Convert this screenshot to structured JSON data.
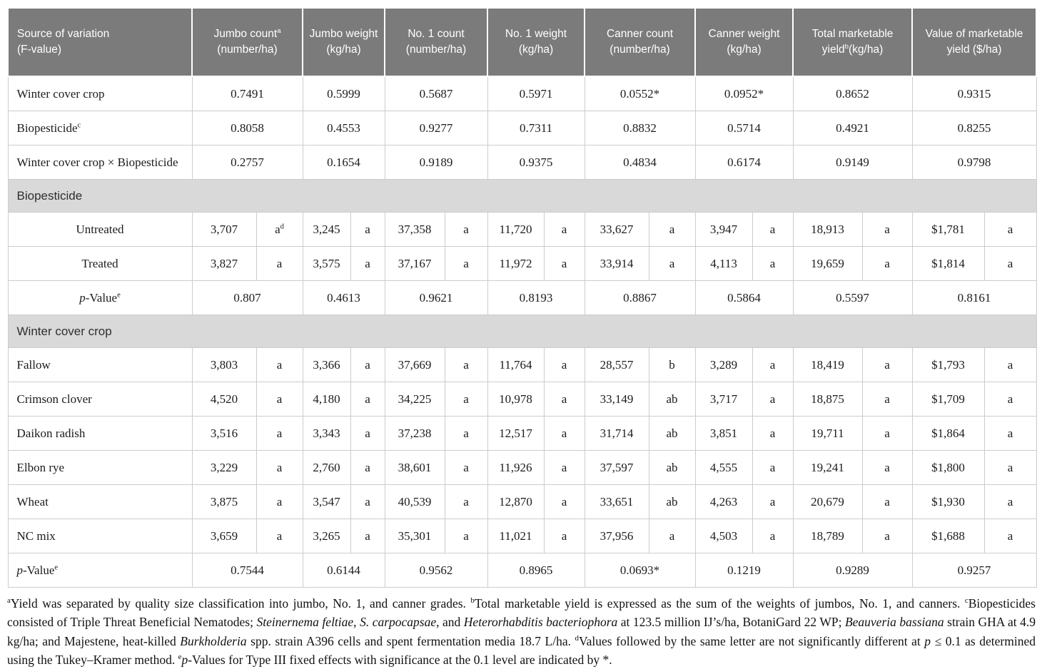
{
  "colors": {
    "header_bg": "#7b7b7b",
    "header_text": "#ffffff",
    "band_bg": "#d9d9d9",
    "border": "#cccccc",
    "body_text": "#1c1c1c"
  },
  "table": {
    "columns": [
      {
        "id": "source",
        "label": [
          {
            "t": "Source of variation"
          },
          {
            "s": "br"
          },
          {
            "t": "(F-value)"
          }
        ]
      },
      {
        "id": "jumbo-count",
        "label": [
          {
            "t": "Jumbo count"
          },
          {
            "t": "a",
            "s": "sup"
          },
          {
            "s": "br"
          },
          {
            "t": "(number/ha)"
          }
        ]
      },
      {
        "id": "jumbo-weight",
        "label": [
          {
            "t": "Jumbo weight (kg/ha)"
          }
        ]
      },
      {
        "id": "no1-count",
        "label": [
          {
            "t": "No. 1 count"
          },
          {
            "s": "br"
          },
          {
            "t": "(number/ha)"
          }
        ]
      },
      {
        "id": "no1-weight",
        "label": [
          {
            "t": "No. 1 weight"
          },
          {
            "s": "br"
          },
          {
            "t": "(kg/ha)"
          }
        ]
      },
      {
        "id": "canner-count",
        "label": [
          {
            "t": "Canner count"
          },
          {
            "s": "br"
          },
          {
            "t": "(number/ha)"
          }
        ]
      },
      {
        "id": "canner-weight",
        "label": [
          {
            "t": "Canner weight (kg/ha)"
          }
        ]
      },
      {
        "id": "total-marketable-yield",
        "label": [
          {
            "t": "Total marketable yield"
          },
          {
            "t": "b",
            "s": "sup"
          },
          {
            "t": "(kg/ha)"
          }
        ]
      },
      {
        "id": "value-marketable-yield",
        "label": [
          {
            "t": "Value of marketable yield ($/ha)"
          }
        ]
      }
    ],
    "f_rows": [
      {
        "label": [
          {
            "t": "Winter cover crop"
          }
        ],
        "values": [
          "0.7491",
          "0.5999",
          "0.5687",
          "0.5971",
          "0.0552*",
          "0.0952*",
          "0.8652",
          "0.9315"
        ]
      },
      {
        "label": [
          {
            "t": "Biopesticide"
          },
          {
            "t": "c",
            "s": "sup"
          }
        ],
        "values": [
          "0.8058",
          "0.4553",
          "0.9277",
          "0.7311",
          "0.8832",
          "0.5714",
          "0.4921",
          "0.8255"
        ]
      },
      {
        "label": [
          {
            "t": "Winter cover crop × Biopesticide"
          }
        ],
        "values": [
          "0.2757",
          "0.1654",
          "0.9189",
          "0.9375",
          "0.4834",
          "0.6174",
          "0.9149",
          "0.9798"
        ]
      }
    ],
    "sections": [
      {
        "title": "Biopesticide",
        "row_label_align": "center",
        "rows": [
          {
            "label": [
              {
                "t": "Untreated"
              }
            ],
            "cells": [
              {
                "v": "3,707",
                "l": [
                  {
                    "t": "a"
                  },
                  {
                    "t": "d",
                    "s": "sup"
                  }
                ]
              },
              {
                "v": "3,245",
                "l": [
                  {
                    "t": "a"
                  }
                ]
              },
              {
                "v": "37,358",
                "l": [
                  {
                    "t": "a"
                  }
                ]
              },
              {
                "v": "11,720",
                "l": [
                  {
                    "t": "a"
                  }
                ]
              },
              {
                "v": "33,627",
                "l": [
                  {
                    "t": "a"
                  }
                ]
              },
              {
                "v": "3,947",
                "l": [
                  {
                    "t": "a"
                  }
                ]
              },
              {
                "v": "18,913",
                "l": [
                  {
                    "t": "a"
                  }
                ]
              },
              {
                "v": "$1,781",
                "l": [
                  {
                    "t": "a"
                  }
                ]
              }
            ]
          },
          {
            "label": [
              {
                "t": "Treated"
              }
            ],
            "cells": [
              {
                "v": "3,827",
                "l": [
                  {
                    "t": "a"
                  }
                ]
              },
              {
                "v": "3,575",
                "l": [
                  {
                    "t": "a"
                  }
                ]
              },
              {
                "v": "37,167",
                "l": [
                  {
                    "t": "a"
                  }
                ]
              },
              {
                "v": "11,972",
                "l": [
                  {
                    "t": "a"
                  }
                ]
              },
              {
                "v": "33,914",
                "l": [
                  {
                    "t": "a"
                  }
                ]
              },
              {
                "v": "4,113",
                "l": [
                  {
                    "t": "a"
                  }
                ]
              },
              {
                "v": "19,659",
                "l": [
                  {
                    "t": "a"
                  }
                ]
              },
              {
                "v": "$1,814",
                "l": [
                  {
                    "t": "a"
                  }
                ]
              }
            ]
          }
        ],
        "p_row": {
          "label": [
            {
              "t": "p",
              "s": "i"
            },
            {
              "t": "-Value"
            },
            {
              "t": "e",
              "s": "sup"
            }
          ],
          "values": [
            "0.807",
            "0.4613",
            "0.9621",
            "0.8193",
            "0.8867",
            "0.5864",
            "0.5597",
            "0.8161"
          ]
        }
      },
      {
        "title": "Winter cover crop",
        "row_label_align": "left",
        "rows": [
          {
            "label": [
              {
                "t": "Fallow"
              }
            ],
            "cells": [
              {
                "v": "3,803",
                "l": [
                  {
                    "t": "a"
                  }
                ]
              },
              {
                "v": "3,366",
                "l": [
                  {
                    "t": "a"
                  }
                ]
              },
              {
                "v": "37,669",
                "l": [
                  {
                    "t": "a"
                  }
                ]
              },
              {
                "v": "11,764",
                "l": [
                  {
                    "t": "a"
                  }
                ]
              },
              {
                "v": "28,557",
                "l": [
                  {
                    "t": "b"
                  }
                ]
              },
              {
                "v": "3,289",
                "l": [
                  {
                    "t": "a"
                  }
                ]
              },
              {
                "v": "18,419",
                "l": [
                  {
                    "t": "a"
                  }
                ]
              },
              {
                "v": "$1,793",
                "l": [
                  {
                    "t": "a"
                  }
                ]
              }
            ]
          },
          {
            "label": [
              {
                "t": "Crimson clover"
              }
            ],
            "cells": [
              {
                "v": "4,520",
                "l": [
                  {
                    "t": "a"
                  }
                ]
              },
              {
                "v": "4,180",
                "l": [
                  {
                    "t": "a"
                  }
                ]
              },
              {
                "v": "34,225",
                "l": [
                  {
                    "t": "a"
                  }
                ]
              },
              {
                "v": "10,978",
                "l": [
                  {
                    "t": "a"
                  }
                ]
              },
              {
                "v": "33,149",
                "l": [
                  {
                    "t": "ab"
                  }
                ]
              },
              {
                "v": "3,717",
                "l": [
                  {
                    "t": "a"
                  }
                ]
              },
              {
                "v": "18,875",
                "l": [
                  {
                    "t": "a"
                  }
                ]
              },
              {
                "v": "$1,709",
                "l": [
                  {
                    "t": "a"
                  }
                ]
              }
            ]
          },
          {
            "label": [
              {
                "t": "Daikon radish"
              }
            ],
            "cells": [
              {
                "v": "3,516",
                "l": [
                  {
                    "t": "a"
                  }
                ]
              },
              {
                "v": "3,343",
                "l": [
                  {
                    "t": "a"
                  }
                ]
              },
              {
                "v": "37,238",
                "l": [
                  {
                    "t": "a"
                  }
                ]
              },
              {
                "v": "12,517",
                "l": [
                  {
                    "t": "a"
                  }
                ]
              },
              {
                "v": "31,714",
                "l": [
                  {
                    "t": "ab"
                  }
                ]
              },
              {
                "v": "3,851",
                "l": [
                  {
                    "t": "a"
                  }
                ]
              },
              {
                "v": "19,711",
                "l": [
                  {
                    "t": "a"
                  }
                ]
              },
              {
                "v": "$1,864",
                "l": [
                  {
                    "t": "a"
                  }
                ]
              }
            ]
          },
          {
            "label": [
              {
                "t": "Elbon rye"
              }
            ],
            "cells": [
              {
                "v": "3,229",
                "l": [
                  {
                    "t": "a"
                  }
                ]
              },
              {
                "v": "2,760",
                "l": [
                  {
                    "t": "a"
                  }
                ]
              },
              {
                "v": "38,601",
                "l": [
                  {
                    "t": "a"
                  }
                ]
              },
              {
                "v": "11,926",
                "l": [
                  {
                    "t": "a"
                  }
                ]
              },
              {
                "v": "37,597",
                "l": [
                  {
                    "t": "ab"
                  }
                ]
              },
              {
                "v": "4,555",
                "l": [
                  {
                    "t": "a"
                  }
                ]
              },
              {
                "v": "19,241",
                "l": [
                  {
                    "t": "a"
                  }
                ]
              },
              {
                "v": "$1,800",
                "l": [
                  {
                    "t": "a"
                  }
                ]
              }
            ]
          },
          {
            "label": [
              {
                "t": "Wheat"
              }
            ],
            "cells": [
              {
                "v": "3,875",
                "l": [
                  {
                    "t": "a"
                  }
                ]
              },
              {
                "v": "3,547",
                "l": [
                  {
                    "t": "a"
                  }
                ]
              },
              {
                "v": "40,539",
                "l": [
                  {
                    "t": "a"
                  }
                ]
              },
              {
                "v": "12,870",
                "l": [
                  {
                    "t": "a"
                  }
                ]
              },
              {
                "v": "33,651",
                "l": [
                  {
                    "t": "ab"
                  }
                ]
              },
              {
                "v": "4,263",
                "l": [
                  {
                    "t": "a"
                  }
                ]
              },
              {
                "v": "20,679",
                "l": [
                  {
                    "t": "a"
                  }
                ]
              },
              {
                "v": "$1,930",
                "l": [
                  {
                    "t": "a"
                  }
                ]
              }
            ]
          },
          {
            "label": [
              {
                "t": "NC mix"
              }
            ],
            "cells": [
              {
                "v": "3,659",
                "l": [
                  {
                    "t": "a"
                  }
                ]
              },
              {
                "v": "3,265",
                "l": [
                  {
                    "t": "a"
                  }
                ]
              },
              {
                "v": "35,301",
                "l": [
                  {
                    "t": "a"
                  }
                ]
              },
              {
                "v": "11,021",
                "l": [
                  {
                    "t": "a"
                  }
                ]
              },
              {
                "v": "37,956",
                "l": [
                  {
                    "t": "a"
                  }
                ]
              },
              {
                "v": "4,503",
                "l": [
                  {
                    "t": "a"
                  }
                ]
              },
              {
                "v": "18,789",
                "l": [
                  {
                    "t": "a"
                  }
                ]
              },
              {
                "v": "$1,688",
                "l": [
                  {
                    "t": "a"
                  }
                ]
              }
            ]
          }
        ],
        "p_row": {
          "label": [
            {
              "t": "p",
              "s": "i"
            },
            {
              "t": "-Value"
            },
            {
              "t": "e",
              "s": "sup"
            }
          ],
          "values": [
            "0.7544",
            "0.6144",
            "0.9562",
            "0.8965",
            "0.0693*",
            "0.1219",
            "0.9289",
            "0.9257"
          ]
        }
      }
    ],
    "footnote": [
      {
        "t": "a",
        "s": "sup"
      },
      {
        "t": "Yield was separated by quality size classification into jumbo, No. 1, and canner grades. "
      },
      {
        "t": "b",
        "s": "sup"
      },
      {
        "t": "Total marketable yield is expressed as the sum of the weights of jumbos, No. 1, and canners. "
      },
      {
        "t": "c",
        "s": "sup"
      },
      {
        "t": "Biopesticides consisted of Triple Threat Beneficial Nematodes; "
      },
      {
        "t": "Steinernema feltiae",
        "s": "i"
      },
      {
        "t": ", "
      },
      {
        "t": "S. carpocapsae",
        "s": "i"
      },
      {
        "t": ", and "
      },
      {
        "t": "Heterorhabditis bacteriophora",
        "s": "i"
      },
      {
        "t": " at 123.5 million IJ’s/ha, BotaniGard 22 WP; "
      },
      {
        "t": "Beauveria bassiana",
        "s": "i"
      },
      {
        "t": " strain GHA at 4.9 kg/ha; and Majestene, heat-killed "
      },
      {
        "t": "Burkholderia",
        "s": "i"
      },
      {
        "t": " spp. strain A396 cells and spent fermentation media 18.7 L/ha. "
      },
      {
        "t": "d",
        "s": "sup"
      },
      {
        "t": "Values followed by the same letter are not significantly different at "
      },
      {
        "t": "p",
        "s": "i"
      },
      {
        "t": " ≤ 0.1 as determined using the Tukey–Kramer method. "
      },
      {
        "t": "e",
        "s": "sup"
      },
      {
        "t": "p",
        "s": "i"
      },
      {
        "t": "-Values for Type III fixed effects with significance at the 0.1 level are indicated by *."
      }
    ]
  }
}
